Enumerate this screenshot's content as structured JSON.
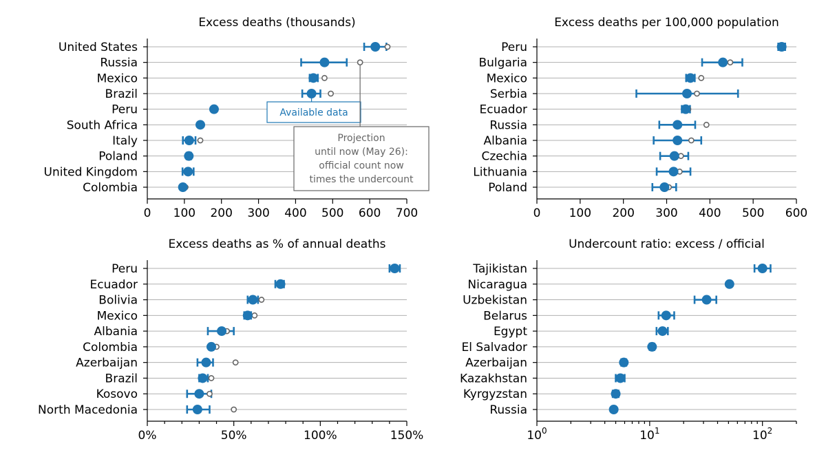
{
  "chart_data": [
    {
      "type": "scatter",
      "title": "Excess deaths (thousands)",
      "xscale": "linear",
      "xlim": [
        0,
        700
      ],
      "xticks": [
        0,
        100,
        200,
        300,
        400,
        500,
        600,
        700
      ],
      "xtick_labels": [
        "0",
        "100",
        "200",
        "300",
        "400",
        "500",
        "600",
        "700"
      ],
      "grid": "horizontal",
      "colors": {
        "estimate": "#1f77b4",
        "projection": "#666666"
      },
      "series": [
        {
          "name": "Available data",
          "style": "filled-dot-with-errorbar"
        },
        {
          "name": "Projection",
          "style": "hollow-dot"
        }
      ],
      "annotations": [
        {
          "text": "Available data",
          "color": "#1f77b4"
        },
        {
          "text": "Projection\nuntil now (May 26):\nofficial count now\ntimes the undercount",
          "color": "#666666"
        }
      ],
      "rows": [
        {
          "label": "United States",
          "value": 615,
          "low": 585,
          "high": 645,
          "projection": 648
        },
        {
          "label": "Russia",
          "value": 478,
          "low": 415,
          "high": 538,
          "projection": 574
        },
        {
          "label": "Mexico",
          "value": 448,
          "low": 438,
          "high": 460,
          "projection": 478
        },
        {
          "label": "Brazil",
          "value": 443,
          "low": 418,
          "high": 467,
          "projection": 495
        },
        {
          "label": "Peru",
          "value": 180,
          "low": 176,
          "high": 184,
          "projection": 182
        },
        {
          "label": "South Africa",
          "value": 143,
          "low": 140,
          "high": 146,
          "projection": 144
        },
        {
          "label": "Italy",
          "value": 113,
          "low": 96,
          "high": 130,
          "projection": 143
        },
        {
          "label": "Poland",
          "value": 112,
          "low": 106,
          "high": 118,
          "projection": 114
        },
        {
          "label": "United Kingdom",
          "value": 110,
          "low": 95,
          "high": 125,
          "projection": 115
        },
        {
          "label": "Colombia",
          "value": 96,
          "low": 93,
          "high": 99,
          "projection": 103
        }
      ]
    },
    {
      "type": "scatter",
      "title": "Excess deaths per 100,000 population",
      "xscale": "linear",
      "xlim": [
        0,
        600
      ],
      "xticks": [
        0,
        100,
        200,
        300,
        400,
        500,
        600
      ],
      "xtick_labels": [
        "0",
        "100",
        "200",
        "300",
        "400",
        "500",
        "600"
      ],
      "grid": "horizontal",
      "rows": [
        {
          "label": "Peru",
          "value": 566,
          "low": 558,
          "high": 574,
          "projection": 568
        },
        {
          "label": "Bulgaria",
          "value": 430,
          "low": 382,
          "high": 475,
          "projection": 447
        },
        {
          "label": "Mexico",
          "value": 355,
          "low": 345,
          "high": 365,
          "projection": 380
        },
        {
          "label": "Serbia",
          "value": 347,
          "low": 230,
          "high": 465,
          "projection": 370
        },
        {
          "label": "Ecuador",
          "value": 344,
          "low": 335,
          "high": 354,
          "projection": 350
        },
        {
          "label": "Russia",
          "value": 325,
          "low": 283,
          "high": 366,
          "projection": 392
        },
        {
          "label": "Albania",
          "value": 325,
          "low": 270,
          "high": 380,
          "projection": 357
        },
        {
          "label": "Czechia",
          "value": 318,
          "low": 285,
          "high": 350,
          "projection": 333
        },
        {
          "label": "Lithuania",
          "value": 316,
          "low": 277,
          "high": 355,
          "projection": 330
        },
        {
          "label": "Poland",
          "value": 295,
          "low": 267,
          "high": 322,
          "projection": 305
        }
      ]
    },
    {
      "type": "scatter",
      "title": "Excess deaths as % of annual deaths",
      "xscale": "linear",
      "xlim": [
        0,
        150
      ],
      "xticks": [
        0,
        50,
        100,
        150
      ],
      "xtick_labels": [
        "0%",
        "50%",
        "100%",
        "150%"
      ],
      "xminor": [
        10,
        20,
        30,
        40,
        60,
        70,
        80,
        90,
        110,
        120,
        130,
        140
      ],
      "grid": "horizontal",
      "rows": [
        {
          "label": "Peru",
          "value": 143,
          "low": 140,
          "high": 146,
          "projection": 144
        },
        {
          "label": "Ecuador",
          "value": 77,
          "low": 74,
          "high": 79,
          "projection": 78
        },
        {
          "label": "Bolivia",
          "value": 61,
          "low": 58,
          "high": 64,
          "projection": 66
        },
        {
          "label": "Mexico",
          "value": 58,
          "low": 56,
          "high": 60,
          "projection": 62
        },
        {
          "label": "Albania",
          "value": 43,
          "low": 35,
          "high": 50,
          "projection": 46
        },
        {
          "label": "Colombia",
          "value": 37,
          "low": 36,
          "high": 38,
          "projection": 40
        },
        {
          "label": "Azerbaijan",
          "value": 34,
          "low": 29,
          "high": 38,
          "projection": 51
        },
        {
          "label": "Brazil",
          "value": 32,
          "low": 30,
          "high": 35,
          "projection": 37
        },
        {
          "label": "Kosovo",
          "value": 30,
          "low": 23,
          "high": 37,
          "projection": 36
        },
        {
          "label": "North Macedonia",
          "value": 29,
          "low": 23,
          "high": 36,
          "projection": 50
        }
      ]
    },
    {
      "type": "scatter",
      "title": "Undercount ratio: excess / official",
      "xscale": "log",
      "xlim": [
        1,
        200
      ],
      "xticks": [
        1,
        10,
        100
      ],
      "xtick_labels": [
        "10",
        "10",
        "10"
      ],
      "xtick_exponents": [
        "0",
        "1",
        "2"
      ],
      "grid": "horizontal",
      "rows": [
        {
          "label": "Tajikistan",
          "value": 100,
          "low": 85,
          "high": 118
        },
        {
          "label": "Nicaragua",
          "value": 51,
          "low": 51,
          "high": 51
        },
        {
          "label": "Uzbekistan",
          "value": 32,
          "low": 25,
          "high": 39
        },
        {
          "label": "Belarus",
          "value": 14,
          "low": 12,
          "high": 16.5
        },
        {
          "label": "Egypt",
          "value": 13,
          "low": 11.5,
          "high": 14.5
        },
        {
          "label": "El Salvador",
          "value": 10.5,
          "low": 10,
          "high": 11
        },
        {
          "label": "Azerbaijan",
          "value": 5.9,
          "low": 5.6,
          "high": 6.2
        },
        {
          "label": "Kazakhstan",
          "value": 5.5,
          "low": 5,
          "high": 6
        },
        {
          "label": "Kyrgyzstan",
          "value": 5.0,
          "low": 4.7,
          "high": 5.3
        },
        {
          "label": "Russia",
          "value": 4.8,
          "low": 4.7,
          "high": 4.9
        }
      ]
    }
  ]
}
